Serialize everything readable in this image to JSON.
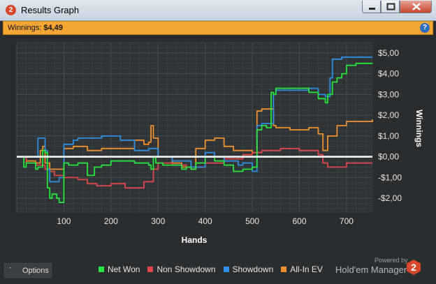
{
  "window": {
    "title": "Results Graph",
    "app_icon": "2",
    "controls": [
      "minimize-icon",
      "maximize-icon",
      "close-icon"
    ]
  },
  "winnings_bar": {
    "label": "Winnings:",
    "value": "$4,49",
    "help_icon": "?"
  },
  "footer": {
    "options_label": "Options",
    "powered_by": "Powered by",
    "brand": "Hold'em Manager",
    "brand_logo_text": "2"
  },
  "colors": {
    "net_won": "#25e63a",
    "non_showdown": "#e2484a",
    "showdown": "#2c8fe4",
    "all_in_ev": "#f0922c",
    "accent": "#f3a634"
  },
  "chart_data": {
    "type": "line",
    "xlabel": "Hands",
    "ylabel": "Winnings",
    "xlim": [
      0,
      755
    ],
    "ylim": [
      -2.7,
      5.5
    ],
    "x_ticks": [
      100,
      200,
      300,
      400,
      500,
      600,
      700
    ],
    "x_tick_labels": [
      "100",
      "200",
      "300",
      "400",
      "500",
      "600",
      "700"
    ],
    "y_ticks": [
      -2,
      -1,
      0,
      1,
      2,
      3,
      4,
      5
    ],
    "y_tick_labels": [
      "-$2,00",
      "-$1,00",
      "$0,00",
      "$1,00",
      "$2,00",
      "$3,00",
      "$4,00",
      "$5,00"
    ],
    "y_axis_position": "right",
    "grid": true,
    "legend_position": "bottom",
    "series": [
      {
        "name": "Net Won",
        "color": "#25e63a",
        "x": [
          0,
          15,
          20,
          40,
          45,
          55,
          60,
          65,
          70,
          75,
          85,
          90,
          100,
          110,
          130,
          150,
          165,
          180,
          200,
          220,
          250,
          280,
          285,
          290,
          295,
          310,
          320,
          350,
          360,
          370,
          380,
          400,
          420,
          440,
          460,
          480,
          500,
          510,
          520,
          530,
          540,
          545,
          550,
          580,
          600,
          620,
          640,
          650,
          655,
          660,
          670,
          680,
          690,
          700,
          720,
          740,
          755
        ],
        "y": [
          0,
          -0.5,
          -0.3,
          -0.6,
          -0.5,
          0.3,
          0.2,
          -1.5,
          -2.0,
          -1.8,
          -2.0,
          -2.2,
          -0.3,
          -0.4,
          -0.3,
          -0.9,
          -0.5,
          -0.4,
          -0.2,
          -0.2,
          -0.3,
          -0.4,
          -0.6,
          0.0,
          -0.3,
          -0.4,
          -0.4,
          -0.6,
          -0.5,
          -0.6,
          -0.3,
          0.0,
          -0.2,
          -0.4,
          -0.7,
          -0.6,
          -0.5,
          1.3,
          1.5,
          1.4,
          3.1,
          3.0,
          3.3,
          3.3,
          3.3,
          3.1,
          2.8,
          2.8,
          2.6,
          3.0,
          3.6,
          3.8,
          4.0,
          4.4,
          4.5,
          4.5,
          4.49
        ]
      },
      {
        "name": "Non Showdown",
        "color": "#e2484a",
        "x": [
          0,
          20,
          40,
          60,
          70,
          80,
          100,
          130,
          150,
          170,
          200,
          230,
          270,
          290,
          300,
          330,
          360,
          400,
          440,
          480,
          500,
          520,
          560,
          600,
          640,
          650,
          660,
          700,
          755
        ],
        "y": [
          0,
          -0.3,
          -0.4,
          -0.6,
          -0.7,
          -0.9,
          -1.0,
          -1.1,
          -1.3,
          -1.4,
          -1.3,
          -1.5,
          -1.2,
          -0.6,
          -0.3,
          -0.4,
          -0.5,
          -0.3,
          -0.1,
          0.1,
          0.2,
          0.3,
          0.4,
          0.3,
          0.1,
          -0.3,
          -0.5,
          -0.3,
          -0.3
        ]
      },
      {
        "name": "Showdown",
        "color": "#2c8fe4",
        "x": [
          0,
          40,
          45,
          60,
          65,
          70,
          90,
          100,
          120,
          130,
          180,
          220,
          250,
          280,
          300,
          330,
          370,
          400,
          420,
          440,
          470,
          480,
          500,
          510,
          520,
          545,
          550,
          580,
          620,
          640,
          650,
          655,
          665,
          670,
          690,
          700,
          755
        ],
        "y": [
          0,
          0,
          0.9,
          0.3,
          -0.6,
          -1.2,
          -1.0,
          0.6,
          0.8,
          0.9,
          1.0,
          0.8,
          0.3,
          0.4,
          0.0,
          -0.2,
          -0.5,
          0.2,
          0.0,
          -0.2,
          -0.4,
          -0.3,
          -0.7,
          1.5,
          1.6,
          3.0,
          3.2,
          3.2,
          3.3,
          3.0,
          3.0,
          2.9,
          3.8,
          4.7,
          4.8,
          4.8,
          4.8
        ]
      },
      {
        "name": "All-In EV",
        "color": "#f0922c",
        "x": [
          0,
          20,
          40,
          50,
          55,
          60,
          70,
          90,
          100,
          120,
          150,
          180,
          200,
          250,
          270,
          280,
          285,
          290,
          300,
          330,
          350,
          370,
          380,
          400,
          420,
          440,
          460,
          500,
          510,
          520,
          545,
          550,
          580,
          620,
          640,
          650,
          660,
          680,
          700,
          755
        ],
        "y": [
          0,
          -0.2,
          -0.3,
          0.3,
          0.5,
          -0.3,
          -0.6,
          -0.6,
          0.4,
          0.5,
          0.3,
          0.4,
          0.4,
          0.8,
          0.6,
          0.7,
          1.5,
          0.9,
          0.0,
          -0.3,
          -0.5,
          -0.6,
          0.4,
          0.8,
          0.9,
          0.5,
          0.3,
          0.2,
          2.2,
          2.3,
          1.5,
          1.4,
          1.3,
          1.4,
          1.1,
          0.3,
          1.0,
          1.5,
          1.7,
          1.8
        ]
      }
    ]
  }
}
